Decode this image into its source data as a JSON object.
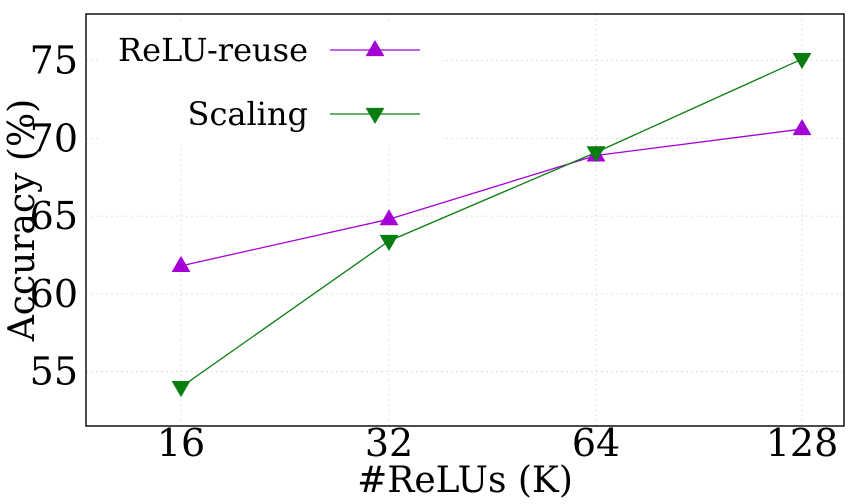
{
  "chart_data": {
    "type": "line",
    "x": [
      "16",
      "32",
      "64",
      "128"
    ],
    "xlabel": "#ReLUs (K)",
    "ylabel": "Accuracy (%)",
    "ylim": [
      51.5,
      78.0
    ],
    "yticks": [
      55,
      60,
      65,
      70,
      75
    ],
    "grid": true,
    "legend_position": "top-left",
    "series": [
      {
        "name": "ReLU-reuse",
        "values": [
          61.8,
          64.8,
          68.9,
          70.6
        ],
        "color": "#a500d6",
        "marker": "triangle-up"
      },
      {
        "name": "Scaling",
        "values": [
          54.0,
          63.4,
          69.1,
          75.1
        ],
        "color": "#0a7d10",
        "marker": "triangle-down"
      }
    ]
  }
}
